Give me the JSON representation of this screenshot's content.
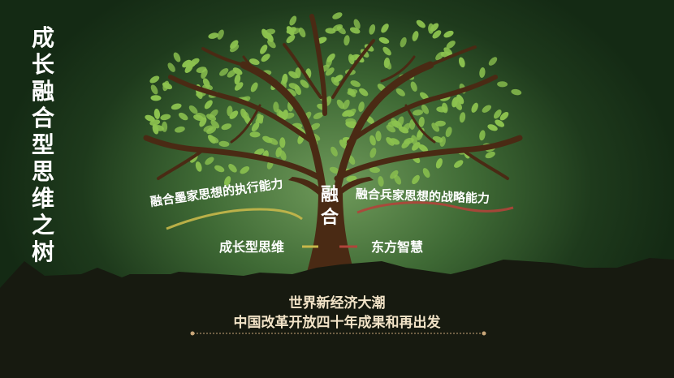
{
  "title": "成长融合型思维之树",
  "center_label": "融合",
  "labels": {
    "left_ability": "融合墨家思想的执行能力",
    "right_ability": "融合兵家思想的战略能力",
    "left_root": "成长型思维",
    "right_root": "东方智慧"
  },
  "footer": {
    "line1": "世界新经济大潮",
    "line2": "中国改革开放四十年成果和再出发"
  },
  "colors": {
    "background": "#2f5a2c",
    "leaf": "#8cc24f",
    "trunk": "#4a2a14",
    "ground": "#171a10",
    "footer_text": "#f2e3c7",
    "left_ribbon": "#c8b84a",
    "right_ribbon": "#b0443a"
  }
}
